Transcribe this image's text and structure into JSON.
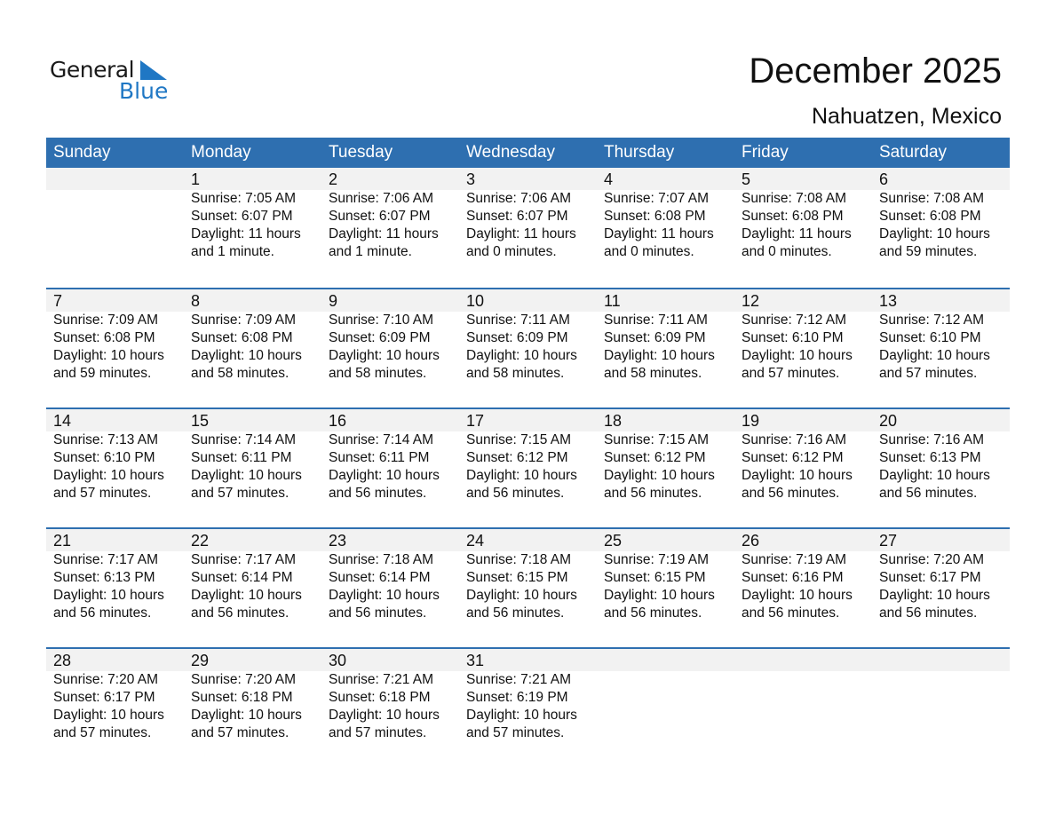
{
  "logo": {
    "general": "General",
    "blue": "Blue"
  },
  "title": "December 2025",
  "location": "Nahuatzen, Mexico",
  "colors": {
    "header": "#2e6fb0",
    "band": "#f2f2f2",
    "logo_blue": "#1f77c4"
  },
  "weekdays": [
    "Sunday",
    "Monday",
    "Tuesday",
    "Wednesday",
    "Thursday",
    "Friday",
    "Saturday"
  ],
  "weeks": [
    [
      null,
      {
        "day": "1",
        "lines": [
          "Sunrise: 7:05 AM",
          "Sunset: 6:07 PM",
          "Daylight: 11 hours",
          "and 1 minute."
        ]
      },
      {
        "day": "2",
        "lines": [
          "Sunrise: 7:06 AM",
          "Sunset: 6:07 PM",
          "Daylight: 11 hours",
          "and 1 minute."
        ]
      },
      {
        "day": "3",
        "lines": [
          "Sunrise: 7:06 AM",
          "Sunset: 6:07 PM",
          "Daylight: 11 hours",
          "and 0 minutes."
        ]
      },
      {
        "day": "4",
        "lines": [
          "Sunrise: 7:07 AM",
          "Sunset: 6:08 PM",
          "Daylight: 11 hours",
          "and 0 minutes."
        ]
      },
      {
        "day": "5",
        "lines": [
          "Sunrise: 7:08 AM",
          "Sunset: 6:08 PM",
          "Daylight: 11 hours",
          "and 0 minutes."
        ]
      },
      {
        "day": "6",
        "lines": [
          "Sunrise: 7:08 AM",
          "Sunset: 6:08 PM",
          "Daylight: 10 hours",
          "and 59 minutes."
        ]
      }
    ],
    [
      {
        "day": "7",
        "lines": [
          "Sunrise: 7:09 AM",
          "Sunset: 6:08 PM",
          "Daylight: 10 hours",
          "and 59 minutes."
        ]
      },
      {
        "day": "8",
        "lines": [
          "Sunrise: 7:09 AM",
          "Sunset: 6:08 PM",
          "Daylight: 10 hours",
          "and 58 minutes."
        ]
      },
      {
        "day": "9",
        "lines": [
          "Sunrise: 7:10 AM",
          "Sunset: 6:09 PM",
          "Daylight: 10 hours",
          "and 58 minutes."
        ]
      },
      {
        "day": "10",
        "lines": [
          "Sunrise: 7:11 AM",
          "Sunset: 6:09 PM",
          "Daylight: 10 hours",
          "and 58 minutes."
        ]
      },
      {
        "day": "11",
        "lines": [
          "Sunrise: 7:11 AM",
          "Sunset: 6:09 PM",
          "Daylight: 10 hours",
          "and 58 minutes."
        ]
      },
      {
        "day": "12",
        "lines": [
          "Sunrise: 7:12 AM",
          "Sunset: 6:10 PM",
          "Daylight: 10 hours",
          "and 57 minutes."
        ]
      },
      {
        "day": "13",
        "lines": [
          "Sunrise: 7:12 AM",
          "Sunset: 6:10 PM",
          "Daylight: 10 hours",
          "and 57 minutes."
        ]
      }
    ],
    [
      {
        "day": "14",
        "lines": [
          "Sunrise: 7:13 AM",
          "Sunset: 6:10 PM",
          "Daylight: 10 hours",
          "and 57 minutes."
        ]
      },
      {
        "day": "15",
        "lines": [
          "Sunrise: 7:14 AM",
          "Sunset: 6:11 PM",
          "Daylight: 10 hours",
          "and 57 minutes."
        ]
      },
      {
        "day": "16",
        "lines": [
          "Sunrise: 7:14 AM",
          "Sunset: 6:11 PM",
          "Daylight: 10 hours",
          "and 56 minutes."
        ]
      },
      {
        "day": "17",
        "lines": [
          "Sunrise: 7:15 AM",
          "Sunset: 6:12 PM",
          "Daylight: 10 hours",
          "and 56 minutes."
        ]
      },
      {
        "day": "18",
        "lines": [
          "Sunrise: 7:15 AM",
          "Sunset: 6:12 PM",
          "Daylight: 10 hours",
          "and 56 minutes."
        ]
      },
      {
        "day": "19",
        "lines": [
          "Sunrise: 7:16 AM",
          "Sunset: 6:12 PM",
          "Daylight: 10 hours",
          "and 56 minutes."
        ]
      },
      {
        "day": "20",
        "lines": [
          "Sunrise: 7:16 AM",
          "Sunset: 6:13 PM",
          "Daylight: 10 hours",
          "and 56 minutes."
        ]
      }
    ],
    [
      {
        "day": "21",
        "lines": [
          "Sunrise: 7:17 AM",
          "Sunset: 6:13 PM",
          "Daylight: 10 hours",
          "and 56 minutes."
        ]
      },
      {
        "day": "22",
        "lines": [
          "Sunrise: 7:17 AM",
          "Sunset: 6:14 PM",
          "Daylight: 10 hours",
          "and 56 minutes."
        ]
      },
      {
        "day": "23",
        "lines": [
          "Sunrise: 7:18 AM",
          "Sunset: 6:14 PM",
          "Daylight: 10 hours",
          "and 56 minutes."
        ]
      },
      {
        "day": "24",
        "lines": [
          "Sunrise: 7:18 AM",
          "Sunset: 6:15 PM",
          "Daylight: 10 hours",
          "and 56 minutes."
        ]
      },
      {
        "day": "25",
        "lines": [
          "Sunrise: 7:19 AM",
          "Sunset: 6:15 PM",
          "Daylight: 10 hours",
          "and 56 minutes."
        ]
      },
      {
        "day": "26",
        "lines": [
          "Sunrise: 7:19 AM",
          "Sunset: 6:16 PM",
          "Daylight: 10 hours",
          "and 56 minutes."
        ]
      },
      {
        "day": "27",
        "lines": [
          "Sunrise: 7:20 AM",
          "Sunset: 6:17 PM",
          "Daylight: 10 hours",
          "and 56 minutes."
        ]
      }
    ],
    [
      {
        "day": "28",
        "lines": [
          "Sunrise: 7:20 AM",
          "Sunset: 6:17 PM",
          "Daylight: 10 hours",
          "and 57 minutes."
        ]
      },
      {
        "day": "29",
        "lines": [
          "Sunrise: 7:20 AM",
          "Sunset: 6:18 PM",
          "Daylight: 10 hours",
          "and 57 minutes."
        ]
      },
      {
        "day": "30",
        "lines": [
          "Sunrise: 7:21 AM",
          "Sunset: 6:18 PM",
          "Daylight: 10 hours",
          "and 57 minutes."
        ]
      },
      {
        "day": "31",
        "lines": [
          "Sunrise: 7:21 AM",
          "Sunset: 6:19 PM",
          "Daylight: 10 hours",
          "and 57 minutes."
        ]
      },
      null,
      null,
      null
    ]
  ]
}
